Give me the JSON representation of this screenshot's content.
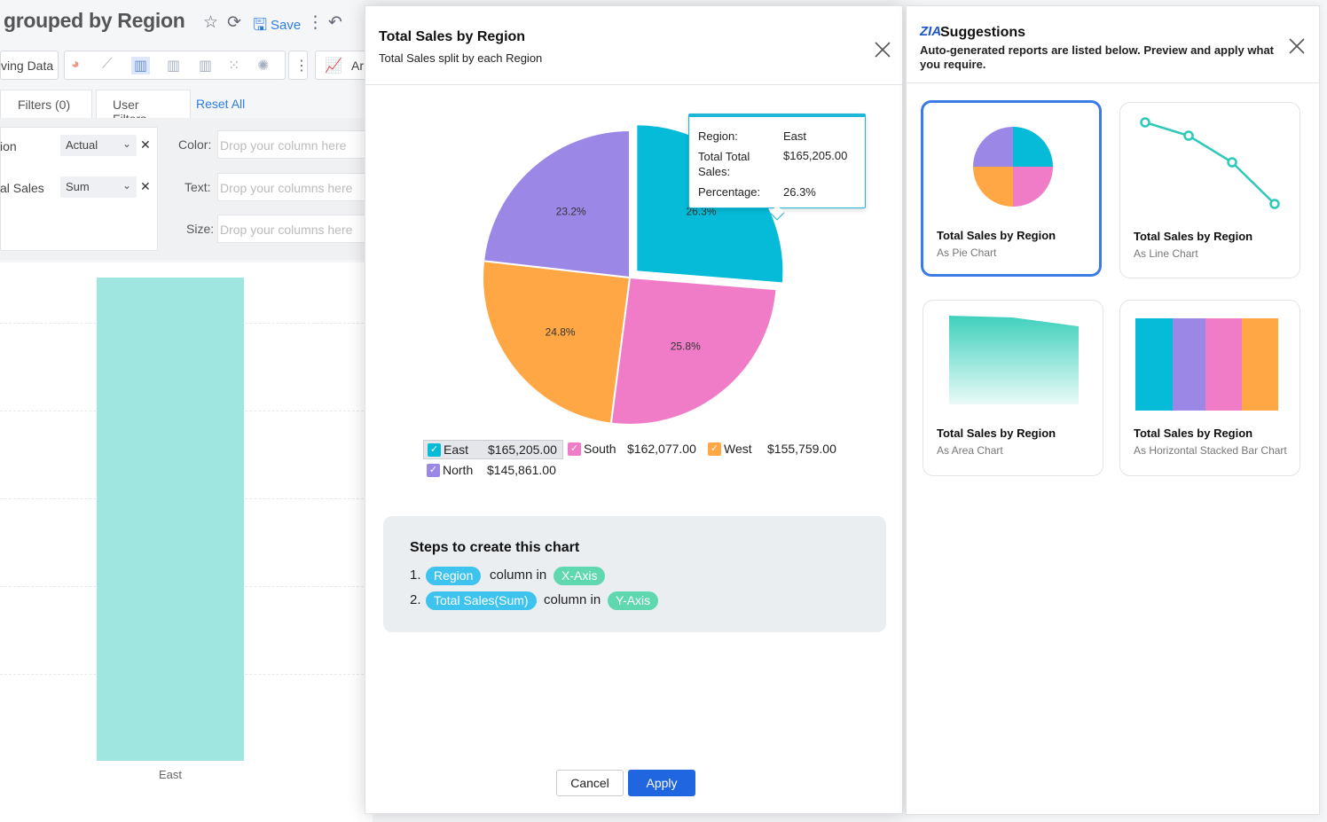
{
  "background": {
    "title": "grouped by Region",
    "save_label": "Save",
    "data_tab_label": "ving Data",
    "tabs": {
      "filters": "Filters  (0)",
      "user_filters": "User Filters",
      "reset_all": "Reset All"
    },
    "shelf_rows": [
      {
        "field": "ion",
        "aggregate": "Actual"
      },
      {
        "field": "al Sales",
        "aggregate": "Sum"
      }
    ],
    "drop_zones": [
      {
        "label": "Color:",
        "placeholder": "Drop your column here"
      },
      {
        "label": "Text:",
        "placeholder": "Drop your columns here"
      },
      {
        "label": "Size:",
        "placeholder": "Drop your columns here"
      }
    ],
    "x_tick": "East",
    "toolbar_overflow_label": "Ar"
  },
  "modal": {
    "title": "Total Sales by Region",
    "subtitle": "Total Sales split by each Region",
    "tooltip": {
      "region_key": "Region:",
      "region_val": "East",
      "total_key": "Total Total Sales:",
      "total_val": "$165,205.00",
      "pct_key": "Percentage:",
      "pct_val": "26.3%"
    },
    "steps_title": "Steps to create this chart",
    "steps": [
      {
        "num": "1.",
        "column": "Region",
        "text": "column in",
        "axis": "X-Axis"
      },
      {
        "num": "2.",
        "column": "Total Sales(Sum)",
        "text": "column in",
        "axis": "Y-Axis"
      }
    ],
    "cancel_label": "Cancel",
    "apply_label": "Apply"
  },
  "chart_data": {
    "type": "pie",
    "title": "Total Sales by Region",
    "subtitle": "Total Sales split by each Region",
    "categories": [
      "East",
      "South",
      "West",
      "North"
    ],
    "values": [
      165205.0,
      162077.0,
      155759.0,
      145861.0
    ],
    "value_labels": [
      "$165,205.00",
      "$162,077.00",
      "$155,759.00",
      "$145,861.00"
    ],
    "percent_labels": [
      "26.3%",
      "25.8%",
      "24.8%",
      "23.2%"
    ],
    "colors": [
      "#05bbd8",
      "#f07cc8",
      "#ffa645",
      "#9a87e6"
    ],
    "exploded": "East",
    "legend_position": "bottom"
  },
  "suggestions": {
    "logo": "ZIA",
    "title": "Suggestions",
    "description": "Auto-generated reports are listed below. Preview and apply what you require.",
    "cards": [
      {
        "title": "Total Sales by Region",
        "subtitle": "As Pie Chart",
        "selected": true
      },
      {
        "title": "Total Sales by Region",
        "subtitle": "As Line Chart",
        "selected": false
      },
      {
        "title": "Total Sales by Region",
        "subtitle": "As Area Chart",
        "selected": false
      },
      {
        "title": "Total Sales by Region",
        "subtitle": "As Horizontal Stacked Bar Chart",
        "selected": false
      }
    ]
  }
}
